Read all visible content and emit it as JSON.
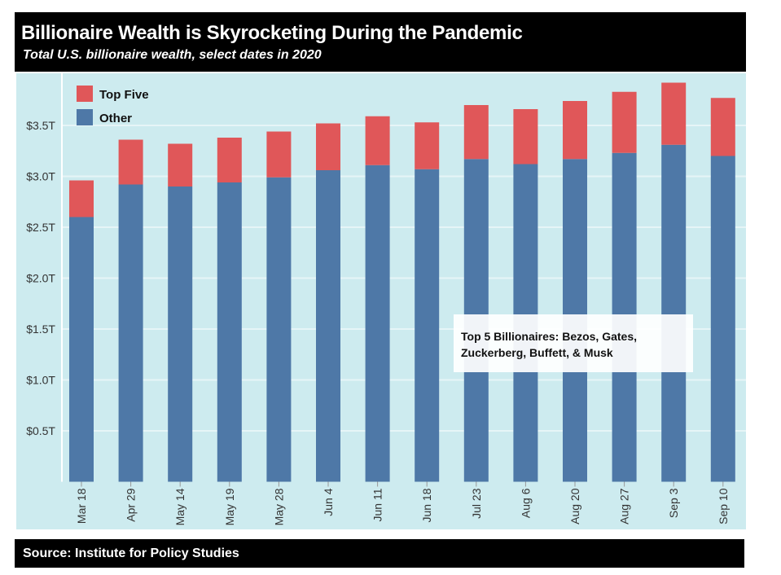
{
  "header": {
    "title": "Billionaire Wealth is Skyrocketing During the Pandemic",
    "subtitle": "Total U.S. billionaire wealth, select dates in 2020"
  },
  "footer": {
    "source": "Source: Institute for Policy Studies"
  },
  "chart_data": {
    "type": "bar",
    "stacked": true,
    "title": "Billionaire Wealth is Skyrocketing During the Pandemic",
    "subtitle": "Total U.S. billionaire wealth, select dates in 2020",
    "xlabel": "",
    "ylabel": "",
    "unit": "trillion USD",
    "ylim": [
      0,
      4.0
    ],
    "yticks": [
      0.5,
      1.0,
      1.5,
      2.0,
      2.5,
      3.0,
      3.5
    ],
    "ytick_labels": [
      "$0.5T",
      "$1.0T",
      "$1.5T",
      "$2.0T",
      "$2.5T",
      "$3.0T",
      "$3.5T"
    ],
    "grid": true,
    "legend": "top-left",
    "categories": [
      "Mar 18",
      "Apr 29",
      "May 14",
      "May 19",
      "May 28",
      "Jun 4",
      "Jun 11",
      "Jun 18",
      "Jul 23",
      "Aug 6",
      "Aug 20",
      "Aug 27",
      "Sep 3",
      "Sep 10"
    ],
    "series": [
      {
        "name": "Other",
        "color": "#4e78a7",
        "values": [
          2.6,
          2.92,
          2.9,
          2.94,
          2.99,
          3.06,
          3.11,
          3.07,
          3.17,
          3.12,
          3.17,
          3.23,
          3.31,
          3.2
        ]
      },
      {
        "name": "Top Five",
        "color": "#e05759",
        "values": [
          0.36,
          0.44,
          0.42,
          0.44,
          0.45,
          0.46,
          0.48,
          0.46,
          0.53,
          0.54,
          0.57,
          0.6,
          0.61,
          0.57
        ]
      }
    ],
    "annotation": "Top 5 Billionaires: Bezos, Gates, Zuckerberg, Buffett, & Musk",
    "annotation_lines": [
      "Top 5 Billionaires: Bezos, Gates,",
      "Zuckerberg, Buffett, & Musk"
    ],
    "background": "#cdebef"
  }
}
